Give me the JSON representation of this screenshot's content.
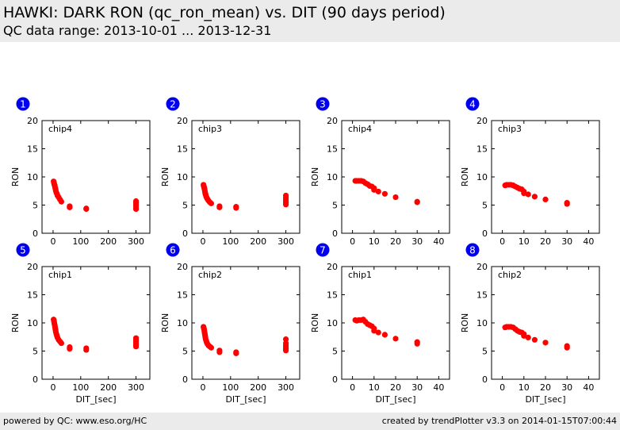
{
  "header": {
    "title": "HAWKI: DARK RON (qc_ron_mean) vs. DIT (90 days period)",
    "subtitle": "QC data range: 2013-10-01 ... 2013-12-31"
  },
  "footer": {
    "left": "powered by QC: www.eso.org/HC",
    "right": "created by trendPlotter v3.3 on 2014-01-15T07:00:44"
  },
  "colors": {
    "marker": "#ff0000",
    "badge": "#0000ee",
    "header_bg": "#ebebeb"
  },
  "chart_data": [
    {
      "type": "scatter",
      "badge": "1",
      "annotation": "chip4",
      "xlabel": "",
      "ylabel": "RON",
      "xlim": [
        -40,
        350
      ],
      "ylim": [
        0,
        20
      ],
      "xticks": [
        0,
        100,
        200,
        300
      ],
      "yticks": [
        0,
        5,
        10,
        15,
        20
      ],
      "points": [
        [
          2,
          9.2
        ],
        [
          3,
          9.0
        ],
        [
          4,
          8.8
        ],
        [
          5,
          8.6
        ],
        [
          6,
          8.5
        ],
        [
          7,
          8.2
        ],
        [
          8,
          8.0
        ],
        [
          9,
          7.8
        ],
        [
          10,
          7.5
        ],
        [
          12,
          7.2
        ],
        [
          14,
          7.0
        ],
        [
          16,
          6.7
        ],
        [
          20,
          6.4
        ],
        [
          25,
          6.0
        ],
        [
          30,
          5.6
        ],
        [
          60,
          4.8
        ],
        [
          60,
          4.6
        ],
        [
          120,
          4.4
        ],
        [
          120,
          4.3
        ],
        [
          300,
          5.7
        ],
        [
          300,
          5.4
        ],
        [
          300,
          5.1
        ],
        [
          300,
          4.8
        ],
        [
          300,
          4.5
        ],
        [
          300,
          4.3
        ]
      ]
    },
    {
      "type": "scatter",
      "badge": "2",
      "annotation": "chip3",
      "xlabel": "",
      "ylabel": "RON",
      "xlim": [
        -40,
        350
      ],
      "ylim": [
        0,
        20
      ],
      "xticks": [
        0,
        100,
        200,
        300
      ],
      "yticks": [
        0,
        5,
        10,
        15,
        20
      ],
      "points": [
        [
          2,
          8.6
        ],
        [
          3,
          8.4
        ],
        [
          4,
          8.2
        ],
        [
          5,
          8.0
        ],
        [
          6,
          7.8
        ],
        [
          7,
          7.5
        ],
        [
          8,
          7.2
        ],
        [
          9,
          7.0
        ],
        [
          10,
          6.8
        ],
        [
          12,
          6.5
        ],
        [
          14,
          6.3
        ],
        [
          16,
          6.1
        ],
        [
          20,
          5.8
        ],
        [
          25,
          5.5
        ],
        [
          30,
          5.3
        ],
        [
          60,
          4.8
        ],
        [
          60,
          4.6
        ],
        [
          120,
          4.7
        ],
        [
          120,
          4.5
        ],
        [
          300,
          6.7
        ],
        [
          300,
          6.3
        ],
        [
          300,
          6.0
        ],
        [
          300,
          5.7
        ],
        [
          300,
          5.4
        ],
        [
          300,
          5.1
        ]
      ]
    },
    {
      "type": "scatter",
      "badge": "3",
      "annotation": "chip4",
      "xlabel": "",
      "ylabel": "RON",
      "xlim": [
        -5,
        45
      ],
      "ylim": [
        0,
        20
      ],
      "xticks": [
        0,
        10,
        20,
        30,
        40
      ],
      "yticks": [
        0,
        5,
        10,
        15,
        20
      ],
      "points": [
        [
          1.3,
          9.3
        ],
        [
          2,
          9.3
        ],
        [
          3,
          9.3
        ],
        [
          4,
          9.3
        ],
        [
          5,
          9.2
        ],
        [
          6,
          8.9
        ],
        [
          7,
          8.7
        ],
        [
          8,
          8.4
        ],
        [
          9,
          8.3
        ],
        [
          10,
          8.0
        ],
        [
          10,
          7.7
        ],
        [
          12,
          7.4
        ],
        [
          15,
          7.0
        ],
        [
          20,
          6.4
        ],
        [
          30,
          5.6
        ],
        [
          30,
          5.5
        ]
      ]
    },
    {
      "type": "scatter",
      "badge": "4",
      "annotation": "chip3",
      "xlabel": "",
      "ylabel": "RON",
      "xlim": [
        -5,
        45
      ],
      "ylim": [
        0,
        20
      ],
      "xticks": [
        0,
        10,
        20,
        30,
        40
      ],
      "yticks": [
        0,
        5,
        10,
        15,
        20
      ],
      "points": [
        [
          1.3,
          8.5
        ],
        [
          2,
          8.6
        ],
        [
          3,
          8.6
        ],
        [
          4,
          8.6
        ],
        [
          5,
          8.5
        ],
        [
          6,
          8.3
        ],
        [
          7,
          8.1
        ],
        [
          8,
          7.9
        ],
        [
          9,
          7.8
        ],
        [
          10,
          7.4
        ],
        [
          10,
          7.1
        ],
        [
          12,
          6.9
        ],
        [
          15,
          6.5
        ],
        [
          20,
          6.0
        ],
        [
          30,
          5.4
        ],
        [
          30,
          5.2
        ]
      ]
    },
    {
      "type": "scatter",
      "badge": "5",
      "annotation": "chip1",
      "xlabel": "DIT_[sec]",
      "ylabel": "RON",
      "xlim": [
        -40,
        350
      ],
      "ylim": [
        0,
        20
      ],
      "xticks": [
        0,
        100,
        200,
        300
      ],
      "yticks": [
        0,
        5,
        10,
        15,
        20
      ],
      "points": [
        [
          2,
          10.6
        ],
        [
          3,
          10.4
        ],
        [
          4,
          10.1
        ],
        [
          5,
          9.8
        ],
        [
          6,
          9.6
        ],
        [
          7,
          9.3
        ],
        [
          8,
          9.0
        ],
        [
          9,
          8.7
        ],
        [
          10,
          8.4
        ],
        [
          12,
          8.0
        ],
        [
          14,
          7.7
        ],
        [
          16,
          7.4
        ],
        [
          20,
          7.0
        ],
        [
          25,
          6.7
        ],
        [
          30,
          6.4
        ],
        [
          60,
          5.7
        ],
        [
          60,
          5.4
        ],
        [
          120,
          5.5
        ],
        [
          120,
          5.2
        ],
        [
          300,
          7.3
        ],
        [
          300,
          7.0
        ],
        [
          300,
          6.7
        ],
        [
          300,
          6.4
        ],
        [
          300,
          6.1
        ],
        [
          300,
          5.8
        ]
      ]
    },
    {
      "type": "scatter",
      "badge": "6",
      "annotation": "chip2",
      "xlabel": "DIT_[sec]",
      "ylabel": "RON",
      "xlim": [
        -40,
        350
      ],
      "ylim": [
        0,
        20
      ],
      "xticks": [
        0,
        100,
        200,
        300
      ],
      "yticks": [
        0,
        5,
        10,
        15,
        20
      ],
      "points": [
        [
          2,
          9.3
        ],
        [
          3,
          9.1
        ],
        [
          4,
          8.9
        ],
        [
          5,
          8.6
        ],
        [
          6,
          8.3
        ],
        [
          7,
          8.0
        ],
        [
          8,
          7.7
        ],
        [
          9,
          7.4
        ],
        [
          10,
          7.1
        ],
        [
          12,
          6.8
        ],
        [
          14,
          6.5
        ],
        [
          16,
          6.3
        ],
        [
          20,
          6.0
        ],
        [
          25,
          5.8
        ],
        [
          30,
          5.6
        ],
        [
          60,
          5.1
        ],
        [
          60,
          4.8
        ],
        [
          120,
          4.8
        ],
        [
          120,
          4.6
        ],
        [
          300,
          7.1
        ],
        [
          300,
          6.4
        ],
        [
          300,
          6.0
        ],
        [
          300,
          5.7
        ],
        [
          300,
          5.4
        ],
        [
          300,
          5.1
        ]
      ]
    },
    {
      "type": "scatter",
      "badge": "7",
      "annotation": "chip1",
      "xlabel": "DIT_[sec]",
      "ylabel": "RON",
      "xlim": [
        -5,
        45
      ],
      "ylim": [
        0,
        20
      ],
      "xticks": [
        0,
        10,
        20,
        30,
        40
      ],
      "yticks": [
        0,
        5,
        10,
        15,
        20
      ],
      "points": [
        [
          1.3,
          10.5
        ],
        [
          2,
          10.4
        ],
        [
          3,
          10.5
        ],
        [
          4,
          10.5
        ],
        [
          5,
          10.6
        ],
        [
          6,
          10.2
        ],
        [
          7,
          9.8
        ],
        [
          8,
          9.6
        ],
        [
          9,
          9.4
        ],
        [
          10,
          9.0
        ],
        [
          10,
          8.6
        ],
        [
          12,
          8.3
        ],
        [
          15,
          7.9
        ],
        [
          20,
          7.2
        ],
        [
          30,
          6.6
        ],
        [
          30,
          6.3
        ]
      ]
    },
    {
      "type": "scatter",
      "badge": "8",
      "annotation": "chip2",
      "xlabel": "DIT_[sec]",
      "ylabel": "RON",
      "xlim": [
        -5,
        45
      ],
      "ylim": [
        0,
        20
      ],
      "xticks": [
        0,
        10,
        20,
        30,
        40
      ],
      "yticks": [
        0,
        5,
        10,
        15,
        20
      ],
      "points": [
        [
          1.3,
          9.2
        ],
        [
          2,
          9.3
        ],
        [
          3,
          9.3
        ],
        [
          4,
          9.3
        ],
        [
          5,
          9.2
        ],
        [
          6,
          8.9
        ],
        [
          7,
          8.6
        ],
        [
          8,
          8.4
        ],
        [
          9,
          8.3
        ],
        [
          10,
          8.0
        ],
        [
          10,
          7.7
        ],
        [
          12,
          7.4
        ],
        [
          15,
          7.0
        ],
        [
          20,
          6.5
        ],
        [
          30,
          5.9
        ],
        [
          30,
          5.6
        ]
      ]
    }
  ]
}
